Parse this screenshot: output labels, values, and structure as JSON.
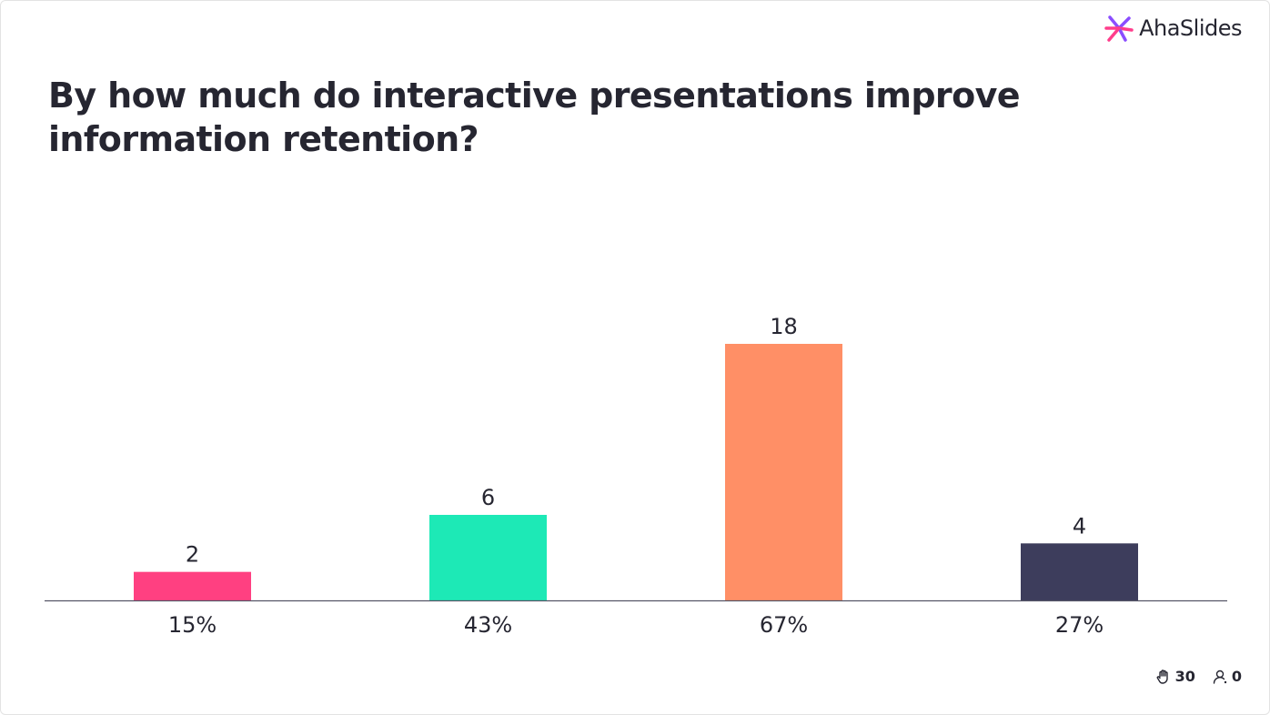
{
  "brand": {
    "name": "AhaSlides",
    "colors": [
      "#ff3d8b",
      "#8a4dff",
      "#6a3cf0"
    ]
  },
  "question": "By how much do interactive presentations improve information retention?",
  "chart_data": {
    "type": "bar",
    "categories": [
      "15%",
      "43%",
      "67%",
      "27%"
    ],
    "values": [
      2,
      6,
      18,
      4
    ],
    "colors": [
      "#ff4081",
      "#1de9b6",
      "#ff8f66",
      "#3d3d5c"
    ],
    "ylim": [
      0,
      18
    ],
    "grid": false,
    "legend": "none"
  },
  "footer": {
    "reactions_icon": "hand-icon",
    "reactions_count": "30",
    "participants_icon": "user-icon",
    "participants_count": "0"
  }
}
